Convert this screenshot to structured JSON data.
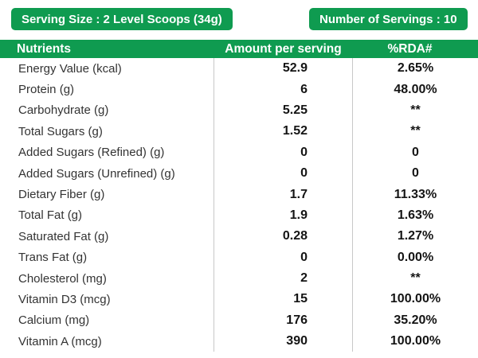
{
  "colors": {
    "brand_green": "#0f9b50",
    "divider_gray": "#c8c8c8",
    "header_text": "#ffffff",
    "label_text": "#333333",
    "value_text": "#141414"
  },
  "badges": {
    "serving_size": "Serving Size : 2 Level Scoops (34g)",
    "number_of_servings": "Number of Servings : 10"
  },
  "table": {
    "headers": [
      "Nutrients",
      "Amount per serving",
      "%RDA#"
    ],
    "rows": [
      {
        "nutrient": "Energy Value (kcal)",
        "amount": "52.9",
        "rda": "2.65%"
      },
      {
        "nutrient": "Protein (g)",
        "amount": "6",
        "rda": "48.00%"
      },
      {
        "nutrient": "Carbohydrate (g)",
        "amount": "5.25",
        "rda": "**"
      },
      {
        "nutrient": "Total Sugars (g)",
        "amount": "1.52",
        "rda": "**"
      },
      {
        "nutrient": "Added Sugars (Refined) (g)",
        "amount": "0",
        "rda": "0"
      },
      {
        "nutrient": "Added Sugars (Unrefined) (g)",
        "amount": "0",
        "rda": "0"
      },
      {
        "nutrient": "Dietary Fiber (g)",
        "amount": "1.7",
        "rda": "11.33%"
      },
      {
        "nutrient": "Total Fat (g)",
        "amount": "1.9",
        "rda": "1.63%"
      },
      {
        "nutrient": "Saturated Fat (g)",
        "amount": "0.28",
        "rda": "1.27%"
      },
      {
        "nutrient": "Trans Fat (g)",
        "amount": "0",
        "rda": "0.00%"
      },
      {
        "nutrient": "Cholesterol (mg)",
        "amount": "2",
        "rda": "**"
      },
      {
        "nutrient": "Vitamin D3 (mcg)",
        "amount": "15",
        "rda": "100.00%"
      },
      {
        "nutrient": "Calcium (mg)",
        "amount": "176",
        "rda": "35.20%"
      },
      {
        "nutrient": "Vitamin A (mcg)",
        "amount": "390",
        "rda": "100.00%"
      }
    ]
  },
  "chart_data": {
    "type": "table",
    "serving_size": "2 Level Scoops (34g)",
    "number_of_servings": 10,
    "columns": [
      "Nutrients",
      "Amount per serving",
      "%RDA#"
    ],
    "rows": [
      [
        "Energy Value (kcal)",
        "52.9",
        "2.65%"
      ],
      [
        "Protein (g)",
        "6",
        "48.00%"
      ],
      [
        "Carbohydrate (g)",
        "5.25",
        "**"
      ],
      [
        "Total Sugars (g)",
        "1.52",
        "**"
      ],
      [
        "Added Sugars (Refined) (g)",
        "0",
        "0"
      ],
      [
        "Added Sugars (Unrefined) (g)",
        "0",
        "0"
      ],
      [
        "Dietary Fiber (g)",
        "1.7",
        "11.33%"
      ],
      [
        "Total Fat (g)",
        "1.9",
        "1.63%"
      ],
      [
        "Saturated Fat (g)",
        "0.28",
        "1.27%"
      ],
      [
        "Trans Fat (g)",
        "0",
        "0.00%"
      ],
      [
        "Cholesterol (mg)",
        "2",
        "**"
      ],
      [
        "Vitamin D3 (mcg)",
        "15",
        "100.00%"
      ],
      [
        "Calcium (mg)",
        "176",
        "35.20%"
      ],
      [
        "Vitamin A (mcg)",
        "390",
        "100.00%"
      ]
    ]
  }
}
